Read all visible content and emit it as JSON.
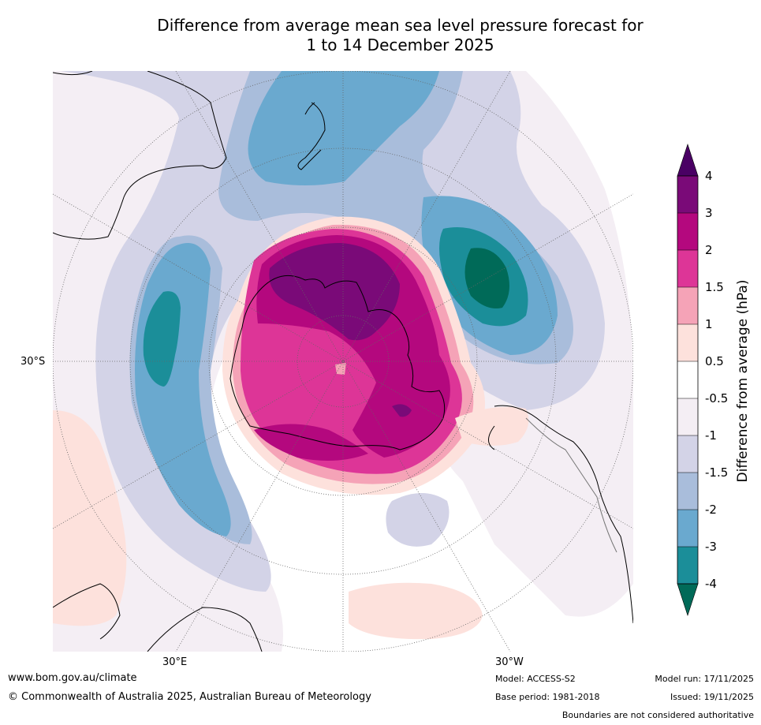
{
  "title": {
    "line1": "Difference from average mean sea level pressure forecast for",
    "line2": "1 to 14 December 2025"
  },
  "map": {
    "projection": "south-polar-stereographic",
    "lat_label": "30°S",
    "lon_labels": {
      "east": "30°E",
      "west": "30°W"
    },
    "boundaries": [
      "Australia",
      "New Zealand",
      "Antarctica",
      "South America",
      "Africa"
    ]
  },
  "legend": {
    "title": "Difference from average (hPa)",
    "ticks": [
      "4",
      "3",
      "2",
      "1.5",
      "1",
      "0.5",
      "-0.5",
      "-1",
      "-1.5",
      "-2",
      "-3",
      "-4"
    ],
    "colors": {
      "gt4": "#4a0064",
      "3_4": "#7a0a78",
      "2_3": "#b4087e",
      "1.5_2": "#dd3597",
      "1_1.5": "#f5a3b7",
      "0.5_1": "#fde1dc",
      "neg0.5_0.5": "#ffffff",
      "neg1_neg0.5": "#f4eef4",
      "neg1.5_neg1": "#d3d3e7",
      "neg2_neg1.5": "#a9bddb",
      "neg3_neg2": "#6aa9cf",
      "neg4_neg3": "#1b8e99",
      "lt_neg4": "#006a58"
    }
  },
  "footer": {
    "website": "www.bom.gov.au/climate",
    "copyright": "© Commonwealth of Australia 2025, Australian Bureau of Meteorology",
    "model": "Model: ACCESS-S2",
    "base_period": "Base period: 1981-2018",
    "model_run": "Model run: 17/11/2025",
    "issued": "Issued: 19/11/2025",
    "disclaimer": "Boundaries are not considered authoritative"
  }
}
